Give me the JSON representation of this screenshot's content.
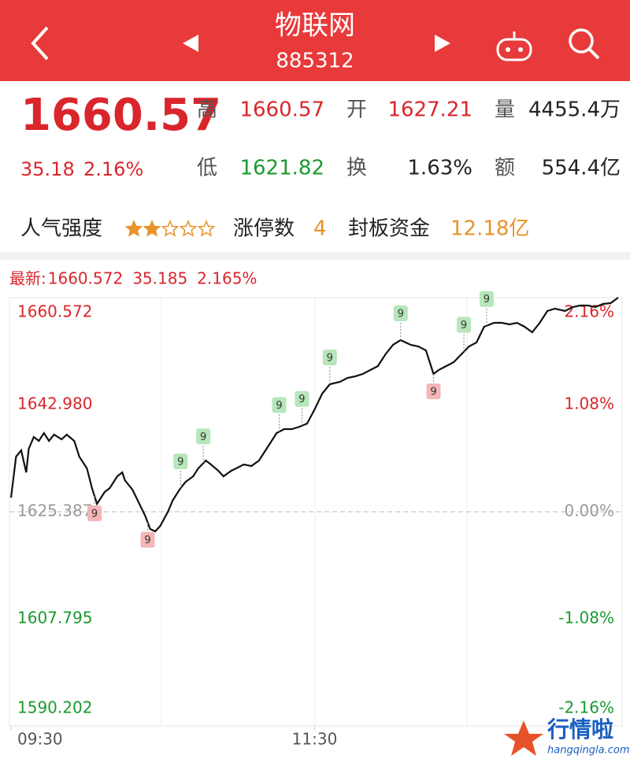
{
  "header": {
    "title": "物联网",
    "code": "885312"
  },
  "quote": {
    "price": "1660.57",
    "change": "35.18",
    "change_pct": "2.16%",
    "stats": [
      [
        {
          "label": "高",
          "value": "1660.57",
          "color": "#d9262c"
        },
        {
          "label": "开",
          "value": "1627.21",
          "color": "#d9262c"
        },
        {
          "label": "量",
          "value": "4455.4万",
          "color": "#222222"
        }
      ],
      [
        {
          "label": "低",
          "value": "1621.82",
          "color": "#1a9a2f"
        },
        {
          "label": "换",
          "value": "1.63%",
          "color": "#222222"
        },
        {
          "label": "额",
          "value": "554.4亿",
          "color": "#222222"
        }
      ]
    ],
    "popularity": {
      "label": "人气强度",
      "rating": 2,
      "max": 5
    },
    "limit_up": {
      "label": "涨停数",
      "value": "4"
    },
    "seal_fund": {
      "label": "封板资金",
      "value": "12.18亿"
    }
  },
  "watermark": {
    "name": "行情啦",
    "site": "hangqingla.com"
  },
  "chart_data": {
    "type": "line",
    "latest": {
      "label": "最新:",
      "price": "1660.572",
      "change": "35.185",
      "pct": "2.165%"
    },
    "x": [
      0,
      2,
      4,
      6,
      7,
      9,
      11,
      13,
      15,
      17,
      20,
      22,
      25,
      27,
      30,
      32,
      34,
      37,
      39,
      42,
      44,
      45,
      48,
      50,
      53,
      55,
      57,
      59,
      62,
      64,
      67,
      69,
      72,
      74,
      77,
      79,
      82,
      84,
      87,
      89,
      92,
      95,
      98,
      101,
      105,
      108,
      111,
      114,
      117,
      120,
      123,
      126,
      130,
      133,
      136,
      139,
      142,
      145,
      148,
      151,
      154,
      158,
      161,
      164,
      167,
      169,
      172,
      175,
      178,
      181,
      184,
      187,
      191,
      194,
      197,
      200,
      203,
      206,
      209,
      212,
      215,
      219,
      222,
      225,
      228,
      231,
      234,
      237,
      240
    ],
    "series": [
      {
        "name": "物联网",
        "color": "#111111",
        "values": [
          1627.72,
          1634.44,
          1635.48,
          1631.86,
          1635.74,
          1637.68,
          1637.03,
          1638.32,
          1637.03,
          1638.06,
          1637.29,
          1638.06,
          1637.03,
          1634.44,
          1632.51,
          1629.27,
          1626.68,
          1628.63,
          1629.27,
          1631.21,
          1631.86,
          1630.56,
          1629.01,
          1627.33,
          1624.74,
          1622.55,
          1622.16,
          1623.06,
          1625.39,
          1627.33,
          1629.27,
          1630.3,
          1631.21,
          1632.51,
          1633.8,
          1633.16,
          1632.12,
          1631.21,
          1632.12,
          1632.51,
          1633.16,
          1632.9,
          1633.8,
          1635.74,
          1638.32,
          1638.97,
          1638.97,
          1639.36,
          1639.87,
          1642.2,
          1644.79,
          1646.34,
          1646.73,
          1647.38,
          1647.63,
          1648.02,
          1648.67,
          1649.32,
          1651.26,
          1652.81,
          1653.59,
          1652.81,
          1652.55,
          1651.91,
          1648.02,
          1648.67,
          1649.32,
          1649.96,
          1651.26,
          1652.55,
          1653.2,
          1655.79,
          1656.43,
          1656.43,
          1656.17,
          1656.43,
          1655.79,
          1654.88,
          1656.43,
          1658.37,
          1658.76,
          1658.37,
          1659.02,
          1659.28,
          1659.28,
          1659.02,
          1659.54,
          1659.67,
          1660.57
        ]
      }
    ],
    "xlim": [
      0,
      240
    ],
    "xticks": [
      {
        "value": 0,
        "label": "09:30"
      },
      {
        "value": 120,
        "label": "11:30"
      }
    ],
    "ylim": [
      1590.202,
      1660.572
    ],
    "yticks": [
      1660.572,
      {
        "value": 1642.98,
        "label": "1642.980"
      },
      1625.387,
      1607.795,
      1590.202
    ],
    "y2lim": [
      -2.16,
      2.16
    ],
    "y2ticks": [
      {
        "value": 2.16,
        "label": "2.16%"
      },
      {
        "value": 1.08,
        "label": "1.08%"
      },
      {
        "value": 0,
        "label": "0.00%"
      },
      {
        "value": -1.08,
        "label": "-1.08%"
      },
      {
        "value": -2.16,
        "label": "-2.16%"
      }
    ],
    "up_color": "#d9262c",
    "down_color": "#1a9a2f",
    "flat_color": "#999999",
    "annotations": [
      {
        "x": 33,
        "text": "9",
        "side": "below",
        "color": "#f4b6b6"
      },
      {
        "x": 54,
        "text": "9",
        "side": "below",
        "color": "#f4b6b6"
      },
      {
        "x": 67,
        "text": "9",
        "side": "above",
        "color": "#b6e6b9"
      },
      {
        "x": 76,
        "text": "9",
        "side": "above",
        "color": "#b6e6b9"
      },
      {
        "x": 106,
        "text": "9",
        "side": "above",
        "color": "#b6e6b9"
      },
      {
        "x": 115,
        "text": "9",
        "side": "above",
        "color": "#b6e6b9"
      },
      {
        "x": 126,
        "text": "9",
        "side": "above",
        "color": "#b6e6b9"
      },
      {
        "x": 154,
        "text": "9",
        "side": "above",
        "color": "#b6e6b9"
      },
      {
        "x": 167,
        "text": "9",
        "side": "below",
        "color": "#f4b6b6"
      },
      {
        "x": 179,
        "text": "9",
        "side": "above",
        "color": "#b6e6b9"
      },
      {
        "x": 188,
        "text": "9",
        "side": "above",
        "color": "#b6e6b9"
      }
    ]
  }
}
